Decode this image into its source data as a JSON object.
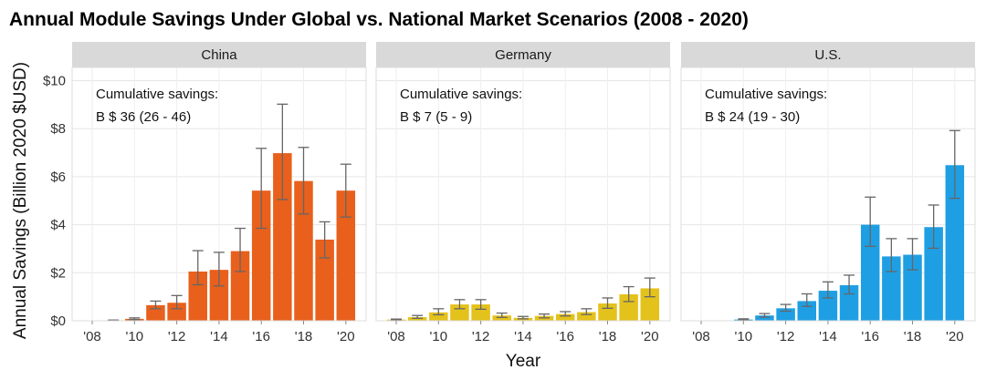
{
  "chart_data": {
    "type": "bar",
    "title": "Annual Module Savings Under Global vs. National Market Scenarios (2008 - 2020)",
    "xlabel": "Year",
    "ylabel": "Annual Savings (Billion 2020 $USD)",
    "ylim": [
      0,
      10
    ],
    "yticks": [
      0,
      2,
      4,
      6,
      8,
      10
    ],
    "ytick_labels": [
      "$0",
      "$2",
      "$4",
      "$6",
      "$8",
      "$10"
    ],
    "years": [
      2008,
      2009,
      2010,
      2011,
      2012,
      2013,
      2014,
      2015,
      2016,
      2017,
      2018,
      2019,
      2020
    ],
    "xtick_years": [
      2008,
      2010,
      2012,
      2014,
      2016,
      2018,
      2020
    ],
    "xtick_labels": [
      "'08",
      "'10",
      "'12",
      "'14",
      "'16",
      "'18",
      "'20"
    ],
    "facets": [
      {
        "name": "China",
        "color": "#E8601C",
        "annotation_line1": "Cumulative savings:",
        "annotation_line2": "B $ 36 (26 - 46)",
        "values": [
          0,
          0.02,
          0.08,
          0.65,
          0.75,
          2.05,
          2.12,
          2.9,
          5.42,
          6.98,
          5.82,
          3.38,
          5.42
        ],
        "lower": [
          0,
          0.01,
          0.05,
          0.5,
          0.5,
          1.5,
          1.45,
          2.05,
          3.85,
          5.05,
          4.45,
          2.62,
          4.32
        ],
        "upper": [
          0,
          0.03,
          0.12,
          0.82,
          1.05,
          2.92,
          2.85,
          3.85,
          7.18,
          9.02,
          7.22,
          4.12,
          6.52
        ]
      },
      {
        "name": "Germany",
        "color": "#E4C21C",
        "annotation_line1": "Cumulative savings:",
        "annotation_line2": "B $ 7 (5 - 9)",
        "values": [
          0.05,
          0.15,
          0.35,
          0.68,
          0.68,
          0.22,
          0.12,
          0.2,
          0.28,
          0.36,
          0.72,
          1.1,
          1.35
        ],
        "lower": [
          0.03,
          0.1,
          0.25,
          0.5,
          0.48,
          0.14,
          0.08,
          0.12,
          0.2,
          0.26,
          0.52,
          0.8,
          1.0
        ],
        "upper": [
          0.07,
          0.22,
          0.5,
          0.88,
          0.88,
          0.32,
          0.18,
          0.28,
          0.38,
          0.5,
          0.95,
          1.42,
          1.78
        ]
      },
      {
        "name": "U.S.",
        "color": "#1F9FE3",
        "annotation_line1": "Cumulative savings:",
        "annotation_line2": "B $ 24 (19 - 30)",
        "values": [
          0,
          0,
          0.05,
          0.22,
          0.52,
          0.82,
          1.25,
          1.48,
          4.0,
          2.68,
          2.75,
          3.9,
          6.48
        ],
        "lower": [
          0,
          0,
          0.03,
          0.15,
          0.4,
          0.6,
          0.95,
          1.12,
          3.1,
          2.05,
          2.12,
          3.02,
          5.1
        ],
        "upper": [
          0,
          0,
          0.08,
          0.3,
          0.68,
          1.12,
          1.62,
          1.9,
          5.15,
          3.42,
          3.42,
          4.82,
          7.92
        ]
      }
    ]
  }
}
